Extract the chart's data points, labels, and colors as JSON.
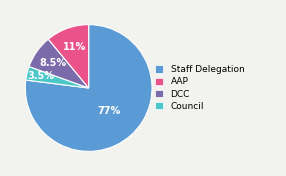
{
  "labels": [
    "Staff Delegation",
    "Council",
    "DCC",
    "AAP"
  ],
  "values": [
    77,
    3.5,
    8.5,
    11
  ],
  "colors": [
    "#5b9bd5",
    "#4dc8c8",
    "#7b6baa",
    "#e9538a"
  ],
  "pct_labels": [
    "77%",
    "3.5%",
    "8.5%",
    "11%"
  ],
  "legend_labels": [
    "Staff Delegation",
    "AAP",
    "DCC",
    "Council"
  ],
  "legend_colors": [
    "#5b9bd5",
    "#e9538a",
    "#7b6baa",
    "#4dc8c8"
  ],
  "background_color": "#f2f2ee",
  "startangle": 90,
  "label_fontsize": 7.0,
  "legend_fontsize": 6.5
}
